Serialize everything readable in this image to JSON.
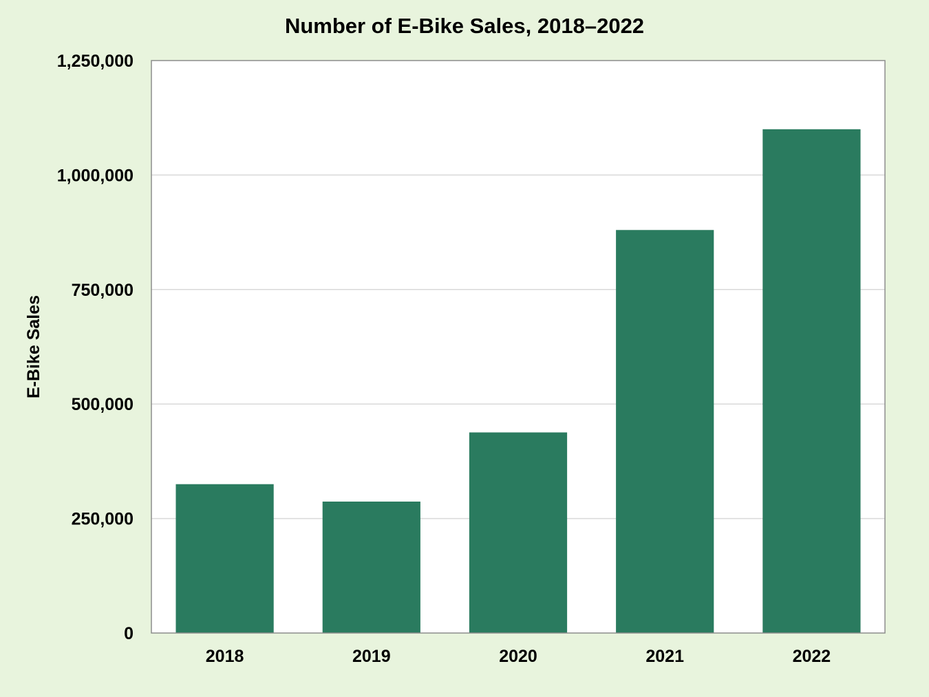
{
  "chart_data": {
    "type": "bar",
    "title": "Number of E-Bike Sales, 2018–2022",
    "xlabel": "",
    "ylabel": "E-Bike Sales",
    "categories": [
      "2018",
      "2019",
      "2020",
      "2021",
      "2022"
    ],
    "values": [
      325000,
      287000,
      438000,
      880000,
      1100000
    ],
    "ylim": [
      0,
      1250000
    ],
    "yticks": [
      0,
      250000,
      500000,
      750000,
      1000000,
      1250000
    ],
    "ytick_labels": [
      "0",
      "250,000",
      "500,000",
      "750,000",
      "1,000,000",
      "1,250,000"
    ],
    "grid": "horizontal",
    "legend": "none",
    "colors": {
      "bar": "#2a7b5f",
      "background": "#e8f4dd",
      "plot_background": "#ffffff",
      "gridline": "#d9d9d9",
      "plot_border": "#8c8c8c"
    }
  }
}
